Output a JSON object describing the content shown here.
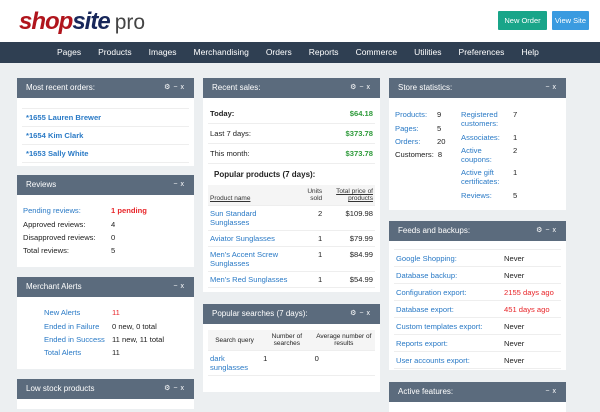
{
  "header": {
    "logo": {
      "part1": "shop",
      "part2": "site",
      "part3": "pro"
    },
    "new_order": "New Order",
    "view_site": "View Site",
    "colors": {
      "new_order": "#19a589",
      "view_site": "#3a9be0"
    }
  },
  "nav": [
    "Pages",
    "Products",
    "Images",
    "Merchandising",
    "Orders",
    "Reports",
    "Commerce",
    "Utilities",
    "Preferences",
    "Help"
  ],
  "recent_orders": {
    "title": "Most recent orders:",
    "items": [
      "*1655 Lauren Brewer",
      "*1654 Kim Clark",
      "*1653 Sally White"
    ]
  },
  "reviews": {
    "title": "Reviews",
    "rows": [
      {
        "label": "Pending reviews:",
        "value": "1 pending"
      },
      {
        "label": "Approved reviews:",
        "value": "4"
      },
      {
        "label": "Disapproved reviews:",
        "value": "0"
      },
      {
        "label": "Total reviews:",
        "value": "5"
      }
    ]
  },
  "alerts": {
    "title": "Merchant Alerts",
    "rows": [
      {
        "label": "New Alerts",
        "value": "11"
      },
      {
        "label": "Ended in Failure",
        "value": "0 new, 0 total"
      },
      {
        "label": "Ended in Success",
        "value": "11 new, 11 total"
      },
      {
        "label": "Total Alerts",
        "value": "11"
      }
    ]
  },
  "low_stock": {
    "title": "Low stock products"
  },
  "sales": {
    "title": "Recent sales:",
    "rows": [
      {
        "label": "Today:",
        "value": "$64.18"
      },
      {
        "label": "Last 7 days:",
        "value": "$373.78"
      },
      {
        "label": "This month:",
        "value": "$373.78"
      }
    ],
    "popular_title": "Popular products (7 days):",
    "columns": [
      "Product name",
      "Units sold",
      "Total price of products"
    ],
    "products": [
      [
        "Sun Standard Sunglasses",
        "2",
        "$109.98"
      ],
      [
        "Aviator Sunglasses",
        "1",
        "$79.99"
      ],
      [
        "Men's Accent Screw Sunglasses",
        "1",
        "$84.99"
      ],
      [
        "Men's Red Sunglasses",
        "1",
        "$54.99"
      ]
    ]
  },
  "searches": {
    "title": "Popular searches (7 days):",
    "columns": [
      "Search query",
      "Number of searches",
      "Average number of results"
    ],
    "rows": [
      [
        "dark sunglasses",
        "1",
        "0"
      ]
    ]
  },
  "stats": {
    "title": "Store statistics:",
    "left": [
      {
        "label": "Products:",
        "value": "9"
      },
      {
        "label": "Pages:",
        "value": "5"
      },
      {
        "label": "Orders:",
        "value": "20"
      },
      {
        "label": "Customers:",
        "value": "8"
      }
    ],
    "right": [
      {
        "label": "Registered customers:",
        "value": "7"
      },
      {
        "label": "Associates:",
        "value": "1"
      },
      {
        "label": "Active coupons:",
        "value": "2"
      },
      {
        "label": "Active gift certificates:",
        "value": "1"
      },
      {
        "label": "Reviews:",
        "value": "5"
      }
    ]
  },
  "feeds": {
    "title": "Feeds and backups:",
    "rows": [
      {
        "label": "Google Shopping:",
        "value": "Never"
      },
      {
        "label": "Database backup:",
        "value": "Never"
      },
      {
        "label": "Configuration export:",
        "value": "2155 days ago"
      },
      {
        "label": "Database export:",
        "value": "451 days ago"
      },
      {
        "label": "Custom templates export:",
        "value": "Never"
      },
      {
        "label": "Reports export:",
        "value": "Never"
      },
      {
        "label": "User accounts export:",
        "value": "Never"
      }
    ]
  },
  "active_features": {
    "title": "Active features:"
  },
  "controls": {
    "gear": "⚙",
    "minimize": "−",
    "close": "x"
  }
}
